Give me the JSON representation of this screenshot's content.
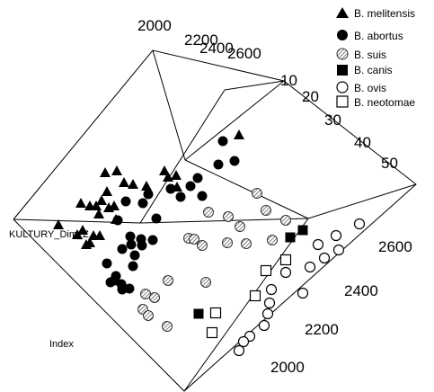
{
  "chart_data": {
    "type": "scatter",
    "projection": "3d",
    "title": "",
    "axes": {
      "left_label": "KULTURY_Dim_Z",
      "bottom_label": "Index",
      "top_ticks": [
        "2000",
        "2200",
        "2400",
        "2600"
      ],
      "right_upper_ticks": [
        "10",
        "20",
        "30",
        "40",
        "50"
      ],
      "right_lower_ticks": [
        "2600",
        "2400",
        "2200",
        "2000"
      ]
    },
    "legend_position": "top-right",
    "series": [
      {
        "name": "B. melitensis",
        "marker": "filled-triangle",
        "points": [
          {
            "x": 117,
            "y": 192
          },
          {
            "x": 130,
            "y": 190
          },
          {
            "x": 138,
            "y": 203
          },
          {
            "x": 148,
            "y": 205
          },
          {
            "x": 163,
            "y": 207
          },
          {
            "x": 183,
            "y": 190
          },
          {
            "x": 187,
            "y": 197
          },
          {
            "x": 196,
            "y": 195
          },
          {
            "x": 197,
            "y": 208
          },
          {
            "x": 119,
            "y": 213
          },
          {
            "x": 113,
            "y": 223
          },
          {
            "x": 90,
            "y": 226
          },
          {
            "x": 100,
            "y": 229
          },
          {
            "x": 107,
            "y": 229
          },
          {
            "x": 110,
            "y": 238
          },
          {
            "x": 121,
            "y": 231
          },
          {
            "x": 129,
            "y": 244
          },
          {
            "x": 127,
            "y": 229
          },
          {
            "x": 65,
            "y": 250
          },
          {
            "x": 92,
            "y": 256
          },
          {
            "x": 86,
            "y": 261
          },
          {
            "x": 96,
            "y": 272
          },
          {
            "x": 104,
            "y": 262
          },
          {
            "x": 100,
            "y": 270
          },
          {
            "x": 111,
            "y": 262
          },
          {
            "x": 266,
            "y": 150
          }
        ]
      },
      {
        "name": "B. abortus",
        "marker": "filled-circle",
        "points": [
          {
            "x": 248,
            "y": 157
          },
          {
            "x": 243,
            "y": 183
          },
          {
            "x": 261,
            "y": 179
          },
          {
            "x": 220,
            "y": 198
          },
          {
            "x": 212,
            "y": 207
          },
          {
            "x": 190,
            "y": 210
          },
          {
            "x": 165,
            "y": 216
          },
          {
            "x": 225,
            "y": 218
          },
          {
            "x": 159,
            "y": 226
          },
          {
            "x": 140,
            "y": 224
          },
          {
            "x": 201,
            "y": 219
          },
          {
            "x": 174,
            "y": 243
          },
          {
            "x": 145,
            "y": 263
          },
          {
            "x": 131,
            "y": 245
          },
          {
            "x": 157,
            "y": 266
          },
          {
            "x": 170,
            "y": 267
          },
          {
            "x": 158,
            "y": 273
          },
          {
            "x": 146,
            "y": 272
          },
          {
            "x": 150,
            "y": 284
          },
          {
            "x": 136,
            "y": 277
          },
          {
            "x": 119,
            "y": 293
          },
          {
            "x": 129,
            "y": 307
          },
          {
            "x": 135,
            "y": 316
          },
          {
            "x": 127,
            "y": 312
          },
          {
            "x": 136,
            "y": 322
          },
          {
            "x": 148,
            "y": 296
          },
          {
            "x": 144,
            "y": 321
          },
          {
            "x": 123,
            "y": 314
          }
        ]
      },
      {
        "name": "B. suis",
        "marker": "hatched-circle",
        "points": [
          {
            "x": 286,
            "y": 215
          },
          {
            "x": 232,
            "y": 236
          },
          {
            "x": 254,
            "y": 241
          },
          {
            "x": 296,
            "y": 234
          },
          {
            "x": 267,
            "y": 252
          },
          {
            "x": 210,
            "y": 265
          },
          {
            "x": 216,
            "y": 266
          },
          {
            "x": 253,
            "y": 270
          },
          {
            "x": 274,
            "y": 271
          },
          {
            "x": 225,
            "y": 273
          },
          {
            "x": 303,
            "y": 267
          },
          {
            "x": 318,
            "y": 245
          },
          {
            "x": 187,
            "y": 312
          },
          {
            "x": 229,
            "y": 314
          },
          {
            "x": 162,
            "y": 327
          },
          {
            "x": 172,
            "y": 331
          },
          {
            "x": 159,
            "y": 344
          },
          {
            "x": 165,
            "y": 351
          },
          {
            "x": 186,
            "y": 363
          }
        ]
      },
      {
        "name": "B. canis",
        "marker": "filled-square",
        "points": [
          {
            "x": 337,
            "y": 256
          },
          {
            "x": 323,
            "y": 264
          },
          {
            "x": 221,
            "y": 349
          }
        ]
      },
      {
        "name": "B. ovis",
        "marker": "open-circle",
        "points": [
          {
            "x": 400,
            "y": 249
          },
          {
            "x": 374,
            "y": 262
          },
          {
            "x": 354,
            "y": 272
          },
          {
            "x": 377,
            "y": 278
          },
          {
            "x": 361,
            "y": 287
          },
          {
            "x": 345,
            "y": 297
          },
          {
            "x": 318,
            "y": 303
          },
          {
            "x": 302,
            "y": 322
          },
          {
            "x": 300,
            "y": 337
          },
          {
            "x": 337,
            "y": 326
          },
          {
            "x": 298,
            "y": 349
          },
          {
            "x": 294,
            "y": 362
          },
          {
            "x": 278,
            "y": 374
          },
          {
            "x": 271,
            "y": 380
          },
          {
            "x": 266,
            "y": 390
          }
        ]
      },
      {
        "name": "B. neotomae",
        "marker": "open-square",
        "points": [
          {
            "x": 318,
            "y": 289
          },
          {
            "x": 296,
            "y": 301
          },
          {
            "x": 284,
            "y": 329
          },
          {
            "x": 240,
            "y": 348
          },
          {
            "x": 236,
            "y": 370
          }
        ]
      }
    ]
  }
}
